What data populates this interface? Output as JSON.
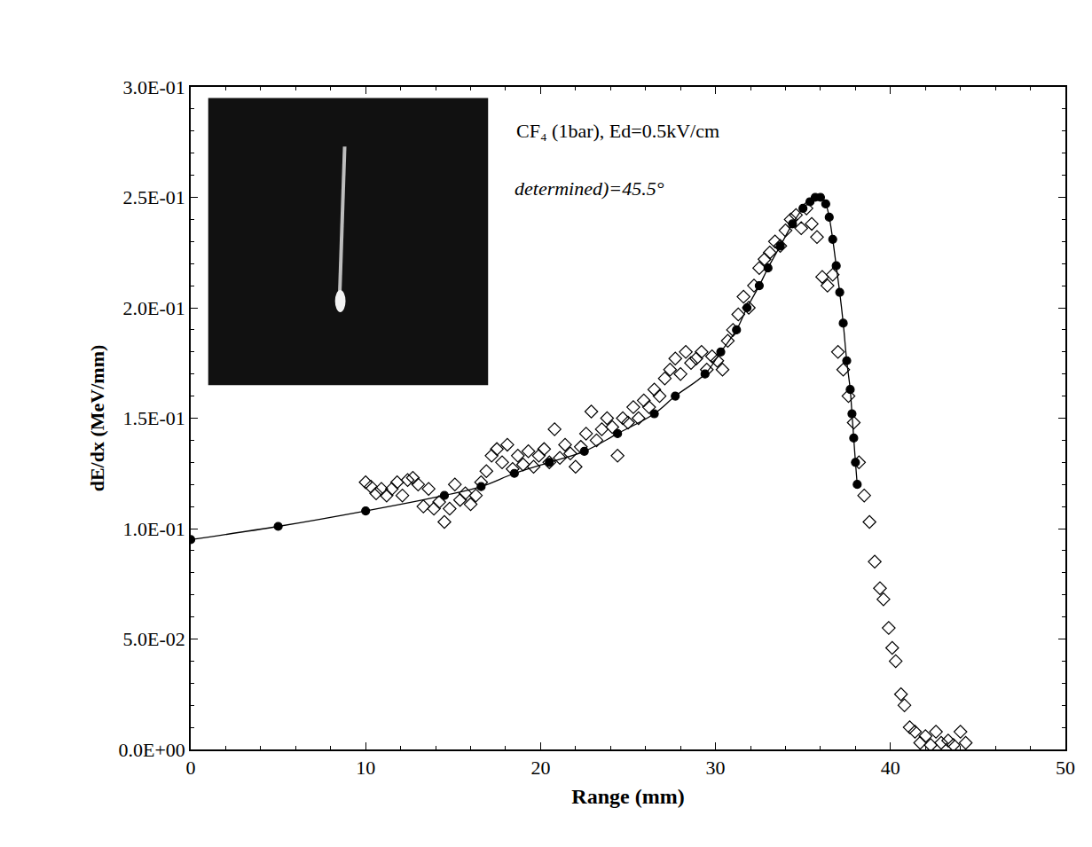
{
  "chart_data": {
    "type": "scatter",
    "x_label": "Range (mm)",
    "y_label": "dE/dx (MeV/mm)",
    "annotations": [
      "CF₄ (1bar), Ed=0.5kV/cm",
      "determined)=45.5°"
    ],
    "xlim": [
      0,
      50
    ],
    "xticks": [
      0,
      10,
      20,
      30,
      40,
      50
    ],
    "ylim": [
      0,
      0.3
    ],
    "yticks": [
      {
        "value": 0,
        "label": "0.0E+00"
      },
      {
        "value": 0.05,
        "label": "5.0E-02"
      },
      {
        "value": 0.1,
        "label": "1.0E-01"
      },
      {
        "value": 0.15,
        "label": "1.5E-01"
      },
      {
        "value": 0.2,
        "label": "2.0E-01"
      },
      {
        "value": 0.25,
        "label": "2.5E-01"
      },
      {
        "value": 0.3,
        "label": "3.0E-01"
      }
    ],
    "grid": false,
    "series": [
      {
        "type": "line",
        "color": "#000000",
        "marker": "filled-circle",
        "line_style": "solid",
        "x": [
          0,
          5,
          10,
          14.5,
          16.6,
          18.5,
          20.5,
          22.5,
          24.4,
          26.5,
          27.7,
          29.4,
          30.3,
          31.2,
          31.8,
          32.5,
          33.0,
          33.7,
          34.4,
          35.0,
          35.4,
          35.7,
          36.0,
          36.3,
          36.5,
          36.7,
          36.9,
          37.1,
          37.3,
          37.5,
          37.7,
          37.8,
          37.9,
          38.0,
          38.1
        ],
        "values": [
          0.095,
          0.101,
          0.108,
          0.115,
          0.119,
          0.125,
          0.13,
          0.135,
          0.143,
          0.152,
          0.16,
          0.17,
          0.18,
          0.19,
          0.2,
          0.21,
          0.218,
          0.228,
          0.238,
          0.245,
          0.248,
          0.25,
          0.25,
          0.247,
          0.241,
          0.231,
          0.219,
          0.207,
          0.193,
          0.176,
          0.163,
          0.152,
          0.141,
          0.13,
          0.12
        ]
      },
      {
        "type": "scatter",
        "color": "#000000",
        "marker": "open-diamond",
        "x": [
          10.0,
          10.3,
          10.6,
          10.9,
          11.2,
          11.5,
          11.8,
          12.1,
          12.4,
          12.7,
          13.0,
          13.3,
          13.6,
          13.9,
          14.2,
          14.5,
          14.8,
          15.1,
          15.4,
          15.7,
          16.0,
          16.3,
          16.6,
          16.9,
          17.2,
          17.5,
          17.8,
          18.1,
          18.4,
          18.7,
          19.0,
          19.3,
          19.6,
          19.9,
          20.2,
          20.5,
          20.8,
          21.1,
          21.4,
          21.7,
          22.0,
          22.3,
          22.6,
          22.9,
          23.2,
          23.5,
          23.8,
          24.1,
          24.4,
          24.7,
          25.0,
          25.3,
          25.6,
          25.9,
          26.2,
          26.5,
          26.8,
          27.1,
          27.4,
          27.7,
          28.0,
          28.3,
          28.6,
          28.9,
          29.2,
          29.5,
          29.8,
          30.1,
          30.4,
          30.7,
          31.0,
          31.3,
          31.6,
          31.9,
          32.2,
          32.5,
          32.8,
          33.1,
          33.4,
          33.7,
          34.0,
          34.3,
          34.6,
          34.9,
          35.2,
          35.5,
          35.8,
          36.1,
          36.4,
          36.7,
          37.0,
          37.3,
          37.6,
          37.9,
          38.2,
          38.5,
          38.8,
          39.1,
          39.4,
          39.6,
          39.9,
          40.1,
          40.3,
          40.6,
          40.8,
          41.1,
          41.4,
          41.7,
          42.0,
          42.3,
          42.6,
          42.9,
          43.3,
          43.6,
          44.0,
          44.3
        ],
        "values": [
          0.121,
          0.119,
          0.116,
          0.118,
          0.115,
          0.118,
          0.121,
          0.115,
          0.122,
          0.123,
          0.12,
          0.11,
          0.118,
          0.109,
          0.112,
          0.103,
          0.109,
          0.12,
          0.113,
          0.116,
          0.111,
          0.115,
          0.121,
          0.126,
          0.133,
          0.136,
          0.13,
          0.138,
          0.127,
          0.133,
          0.129,
          0.135,
          0.128,
          0.133,
          0.136,
          0.13,
          0.145,
          0.132,
          0.138,
          0.134,
          0.128,
          0.137,
          0.143,
          0.153,
          0.14,
          0.145,
          0.15,
          0.146,
          0.133,
          0.15,
          0.148,
          0.155,
          0.15,
          0.158,
          0.155,
          0.163,
          0.16,
          0.168,
          0.172,
          0.177,
          0.17,
          0.18,
          0.175,
          0.177,
          0.18,
          0.172,
          0.178,
          0.176,
          0.172,
          0.185,
          0.19,
          0.197,
          0.205,
          0.2,
          0.21,
          0.218,
          0.222,
          0.225,
          0.23,
          0.228,
          0.235,
          0.24,
          0.242,
          0.236,
          0.245,
          0.238,
          0.232,
          0.214,
          0.21,
          0.215,
          0.18,
          0.172,
          0.16,
          0.148,
          0.13,
          0.115,
          0.103,
          0.085,
          0.073,
          0.068,
          0.055,
          0.046,
          0.04,
          0.025,
          0.02,
          0.01,
          0.008,
          0.003,
          0.006,
          0.002,
          0.008,
          0.003,
          0.004,
          0.002,
          0.008,
          0.003
        ]
      }
    ]
  }
}
